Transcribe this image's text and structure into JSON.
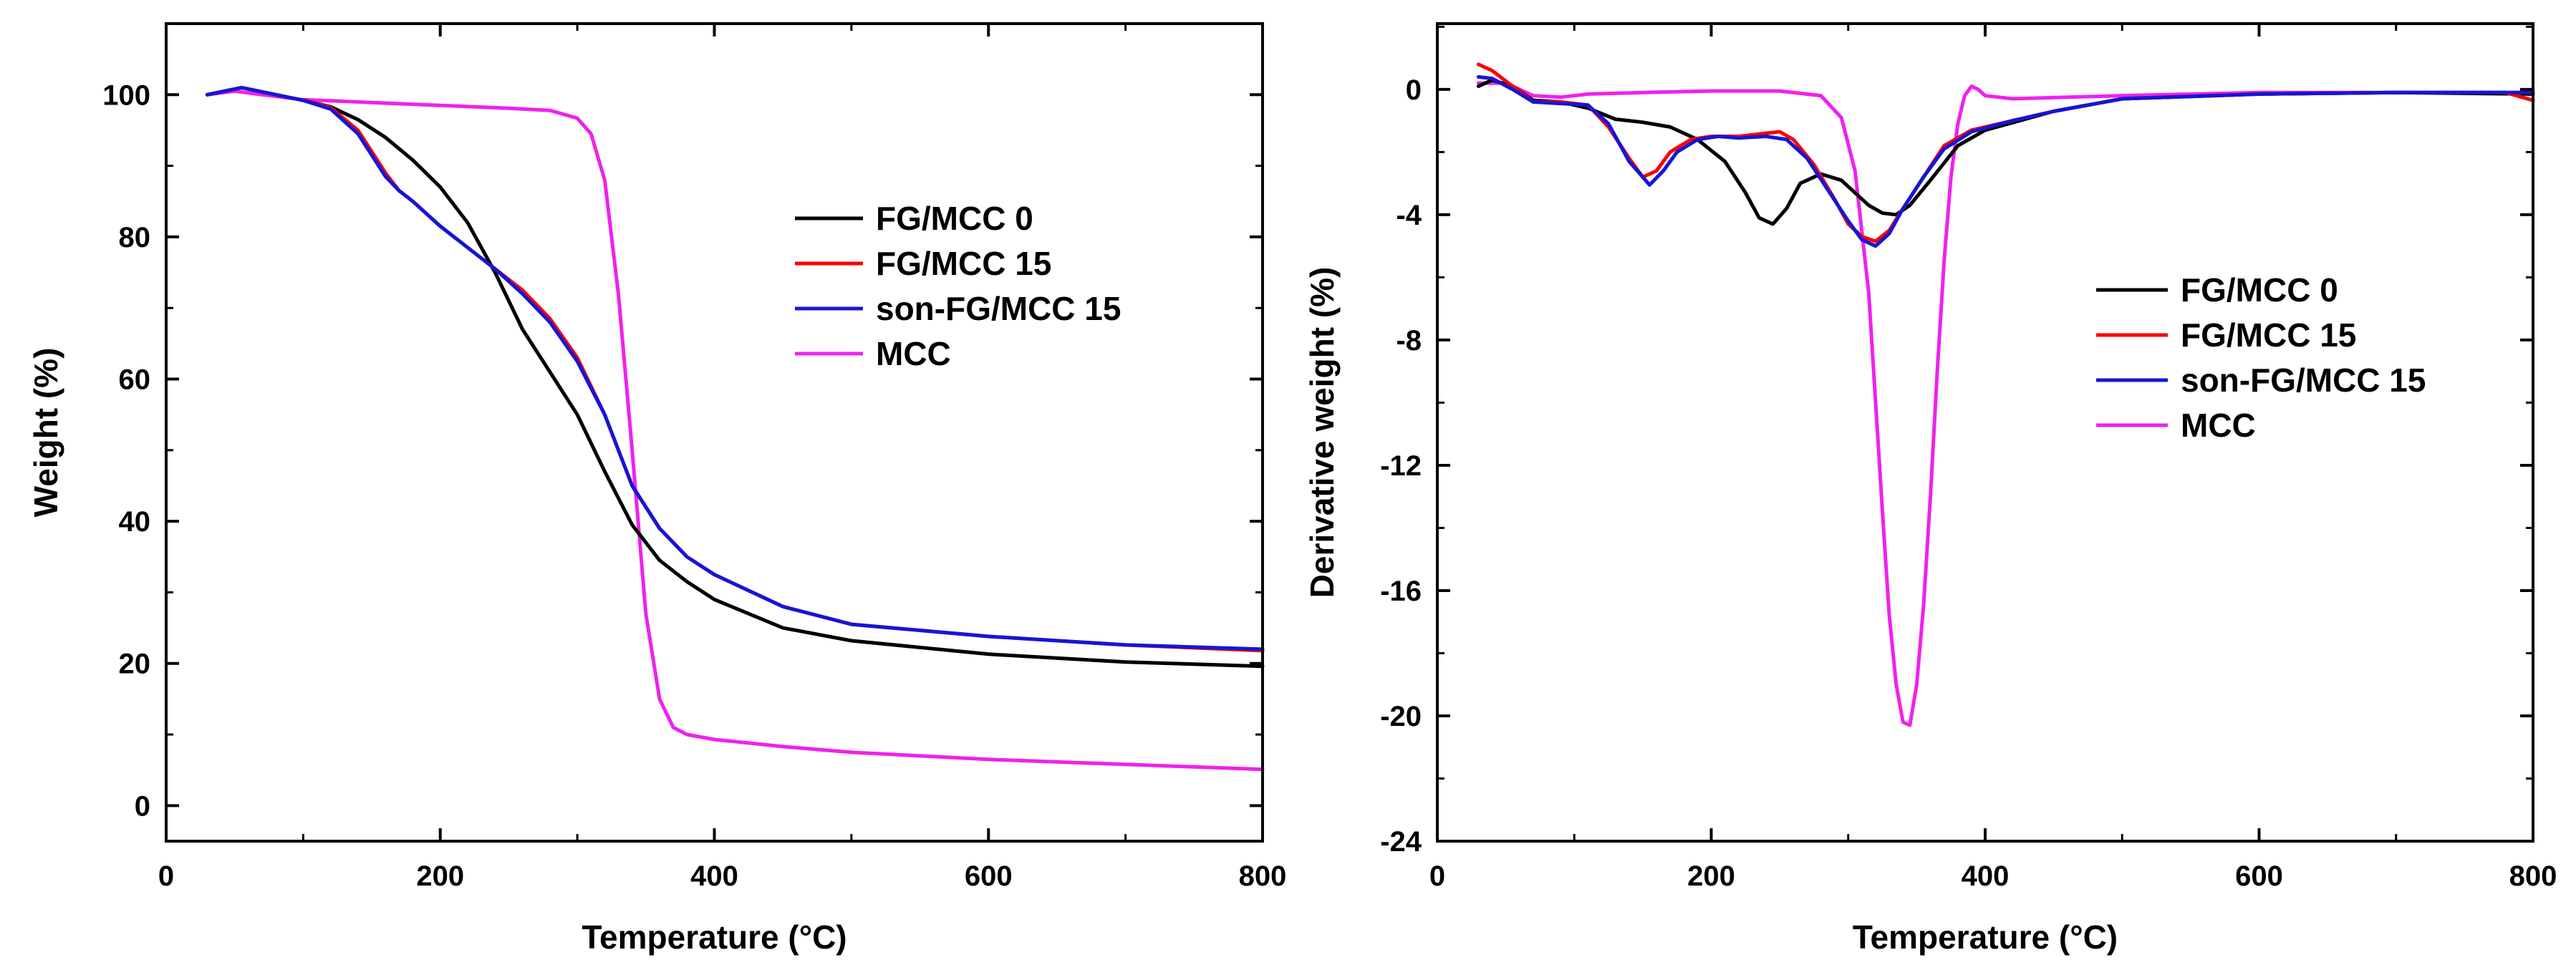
{
  "chart_data": [
    {
      "type": "line",
      "xlabel": "Temperature (°C)",
      "ylabel": "Weight (%)",
      "xlim": [
        0,
        800
      ],
      "ylim": [
        -5,
        110
      ],
      "xticks": [
        0,
        200,
        400,
        600,
        800
      ],
      "yticks": [
        0,
        20,
        40,
        60,
        80,
        100
      ],
      "legend_position": "right-middle",
      "series": [
        {
          "name": "FG/MCC 0",
          "color": "#000000",
          "x": [
            30,
            55,
            80,
            100,
            120,
            140,
            160,
            180,
            200,
            220,
            240,
            260,
            280,
            300,
            320,
            340,
            360,
            380,
            400,
            450,
            500,
            600,
            700,
            800
          ],
          "y": [
            100,
            101,
            100,
            99.2,
            98.3,
            96.5,
            94,
            90.8,
            87,
            82,
            75,
            67,
            61,
            55,
            47,
            39.5,
            34.5,
            31.5,
            29,
            25,
            23.2,
            21.3,
            20.2,
            19.6
          ]
        },
        {
          "name": "FG/MCC 15",
          "color": "#ff0000",
          "x": [
            30,
            55,
            80,
            100,
            120,
            140,
            150,
            160,
            170,
            180,
            200,
            220,
            240,
            260,
            280,
            300,
            320,
            340,
            360,
            380,
            400,
            450,
            500,
            600,
            700,
            800
          ],
          "y": [
            100,
            101,
            100,
            99.2,
            98.2,
            95,
            92,
            89,
            86.5,
            85,
            81.5,
            78.5,
            75.5,
            72.5,
            68.5,
            63,
            55,
            45,
            39,
            35,
            32.5,
            28,
            25.5,
            23.8,
            22.6,
            21.8
          ]
        },
        {
          "name": "son-FG/MCC 15",
          "color": "#1515d8",
          "x": [
            30,
            55,
            80,
            100,
            120,
            140,
            150,
            160,
            170,
            180,
            200,
            220,
            240,
            260,
            280,
            300,
            320,
            340,
            360,
            380,
            400,
            450,
            500,
            600,
            700,
            800
          ],
          "y": [
            100,
            101,
            100,
            99.2,
            98,
            94.5,
            91.5,
            88.5,
            86.5,
            85,
            81.5,
            78.5,
            75.5,
            72,
            68,
            62.5,
            55,
            45,
            39,
            35,
            32.5,
            28,
            25.5,
            23.8,
            22.6,
            22
          ]
        },
        {
          "name": "MCC",
          "color": "#ee22ee",
          "x": [
            30,
            50,
            70,
            100,
            150,
            200,
            250,
            280,
            300,
            310,
            320,
            330,
            340,
            350,
            360,
            370,
            380,
            400,
            450,
            500,
            600,
            700,
            800
          ],
          "y": [
            100,
            100.5,
            100,
            99.3,
            98.9,
            98.5,
            98.1,
            97.8,
            96.7,
            94.5,
            88,
            72,
            50,
            27,
            15,
            11,
            10,
            9.3,
            8.3,
            7.5,
            6.5,
            5.8,
            5.1
          ]
        }
      ]
    },
    {
      "type": "line",
      "xlabel": "Temperature (°C)",
      "ylabel": "Derivative weight (%)",
      "xlim": [
        0,
        800
      ],
      "ylim": [
        -24,
        2.1
      ],
      "xticks": [
        0,
        200,
        400,
        600,
        800
      ],
      "yticks": [
        0,
        -4,
        -8,
        -12,
        -16,
        -20,
        -24
      ],
      "legend_position": "right-middle",
      "series": [
        {
          "name": "FG/MCC 0",
          "color": "#000000",
          "x": [
            30,
            40,
            55,
            70,
            90,
            110,
            130,
            150,
            170,
            190,
            210,
            225,
            235,
            245,
            255,
            265,
            280,
            295,
            305,
            315,
            325,
            335,
            345,
            360,
            380,
            400,
            450,
            500,
            600,
            700,
            800
          ],
          "y": [
            0.1,
            0.3,
            0.1,
            -0.35,
            -0.4,
            -0.6,
            -0.95,
            -1.05,
            -1.2,
            -1.6,
            -2.3,
            -3.3,
            -4.1,
            -4.3,
            -3.8,
            -3.0,
            -2.7,
            -2.9,
            -3.3,
            -3.7,
            -3.95,
            -4.0,
            -3.7,
            -2.9,
            -1.8,
            -1.3,
            -0.7,
            -0.3,
            -0.15,
            -0.1,
            -0.15
          ]
        },
        {
          "name": "FG/MCC 15",
          "color": "#ff0000",
          "x": [
            30,
            40,
            55,
            70,
            90,
            110,
            125,
            140,
            150,
            160,
            170,
            185,
            200,
            220,
            240,
            250,
            260,
            275,
            290,
            300,
            310,
            320,
            330,
            340,
            355,
            370,
            390,
            420,
            450,
            500,
            600,
            700,
            780,
            800
          ],
          "y": [
            0.8,
            0.6,
            0.1,
            -0.4,
            -0.4,
            -0.5,
            -1.2,
            -2.2,
            -2.8,
            -2.6,
            -2.0,
            -1.6,
            -1.5,
            -1.5,
            -1.4,
            -1.35,
            -1.6,
            -2.4,
            -3.5,
            -4.3,
            -4.7,
            -4.85,
            -4.5,
            -3.8,
            -2.8,
            -1.8,
            -1.3,
            -1.0,
            -0.7,
            -0.3,
            -0.15,
            -0.1,
            -0.1,
            -0.35
          ]
        },
        {
          "name": "son-FG/MCC 15",
          "color": "#1515d8",
          "x": [
            30,
            40,
            55,
            70,
            90,
            110,
            125,
            140,
            155,
            165,
            175,
            190,
            205,
            220,
            240,
            255,
            270,
            285,
            300,
            310,
            320,
            330,
            340,
            355,
            370,
            390,
            420,
            450,
            500,
            600,
            700,
            800
          ],
          "y": [
            0.4,
            0.35,
            0.0,
            -0.4,
            -0.45,
            -0.5,
            -1.1,
            -2.3,
            -3.05,
            -2.6,
            -2.0,
            -1.6,
            -1.5,
            -1.55,
            -1.5,
            -1.6,
            -2.2,
            -3.2,
            -4.2,
            -4.8,
            -5.0,
            -4.6,
            -3.8,
            -2.8,
            -1.9,
            -1.35,
            -1.0,
            -0.7,
            -0.3,
            -0.15,
            -0.1,
            -0.1
          ]
        },
        {
          "name": "MCC",
          "color": "#ee22ee",
          "x": [
            30,
            50,
            70,
            90,
            110,
            150,
            200,
            250,
            280,
            295,
            305,
            315,
            320,
            325,
            330,
            335,
            340,
            345,
            350,
            355,
            360,
            365,
            370,
            375,
            380,
            385,
            390,
            395,
            400,
            420,
            500,
            600,
            700,
            800
          ],
          "y": [
            0.2,
            0.2,
            -0.2,
            -0.25,
            -0.15,
            -0.1,
            -0.05,
            -0.05,
            -0.2,
            -0.9,
            -2.6,
            -6.5,
            -10,
            -13.5,
            -16.8,
            -19,
            -20.2,
            -20.3,
            -19,
            -16.5,
            -13,
            -9,
            -5.5,
            -2.8,
            -1.1,
            -0.2,
            0.1,
            0.0,
            -0.2,
            -0.3,
            -0.2,
            -0.1,
            -0.1,
            -0.1
          ]
        }
      ]
    }
  ]
}
